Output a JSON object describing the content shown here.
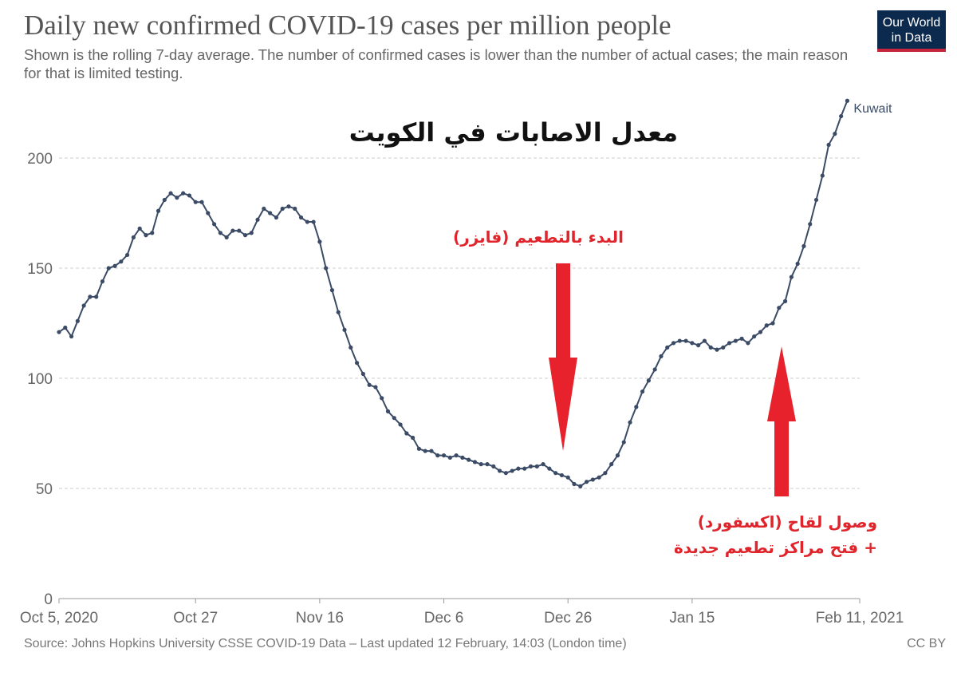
{
  "header": {
    "title": "Daily new confirmed COVID-19 cases per million people",
    "subtitle": "Shown is the rolling 7-day average. The number of confirmed cases is lower than the number of actual cases; the main reason for that is limited testing."
  },
  "logo": {
    "line1": "Our World",
    "line2": "in Data"
  },
  "footer": {
    "source": "Source: Johns Hopkins University CSSE COVID-19 Data – Last updated 12 February, 14:03 (London time)",
    "license": "CC BY"
  },
  "annotations": {
    "main": "معدل الاصابات في الكويت",
    "pfizer": "البدء بالتطعيم (فايزر)",
    "oxford_line1": "وصول لقاح (اكسفورد)",
    "oxford_line2": "+ فتح مراكز تطعيم جديدة"
  },
  "colors": {
    "series": "#3b4b66",
    "grid": "#cccccc",
    "arrow": "#e8222c"
  },
  "chart_data": {
    "type": "line",
    "title": "Daily new confirmed COVID-19 cases per million people",
    "xlabel": "",
    "ylabel": "",
    "ylim": [
      0,
      226
    ],
    "y_ticks": [
      0,
      50,
      100,
      150,
      200
    ],
    "x_range": [
      "2020-10-05",
      "2021-02-11"
    ],
    "x_ticks": [
      {
        "date": "2020-10-05",
        "label": "Oct 5, 2020"
      },
      {
        "date": "2020-10-27",
        "label": "Oct 27"
      },
      {
        "date": "2020-11-16",
        "label": "Nov 16"
      },
      {
        "date": "2020-12-06",
        "label": "Dec 6"
      },
      {
        "date": "2020-12-26",
        "label": "Dec 26"
      },
      {
        "date": "2021-01-15",
        "label": "Jan 15"
      },
      {
        "date": "2021-02-11",
        "label": "Feb 11, 2021"
      }
    ],
    "grid": "horizontal dashed",
    "series": [
      {
        "name": "Kuwait",
        "start_date": "2020-10-05",
        "step": "1 day",
        "values": [
          121,
          123,
          119,
          126,
          133,
          137,
          137,
          144,
          150,
          151,
          153,
          156,
          164,
          168,
          165,
          166,
          176,
          181,
          184,
          182,
          184,
          183,
          180,
          180,
          175,
          170,
          166,
          164,
          167,
          167,
          165,
          166,
          172,
          177,
          175,
          173,
          177,
          178,
          177,
          173,
          171,
          171,
          162,
          150,
          140,
          130,
          122,
          114,
          107,
          102,
          97,
          96,
          91,
          85,
          82,
          79,
          75,
          73,
          68,
          67,
          67,
          65,
          65,
          64,
          65,
          64,
          63,
          62,
          61,
          61,
          60,
          58,
          57,
          58,
          59,
          59,
          60,
          60,
          61,
          59,
          57,
          56,
          55,
          52,
          51,
          53,
          54,
          55,
          57,
          61,
          65,
          71,
          80,
          87,
          94,
          99,
          104,
          110,
          114,
          116,
          117,
          117,
          116,
          115,
          117,
          114,
          113,
          114,
          116,
          117,
          118,
          116,
          119,
          121,
          124,
          125,
          132,
          135,
          146,
          152,
          160,
          170,
          181,
          192,
          206,
          211,
          219,
          226
        ]
      }
    ]
  }
}
